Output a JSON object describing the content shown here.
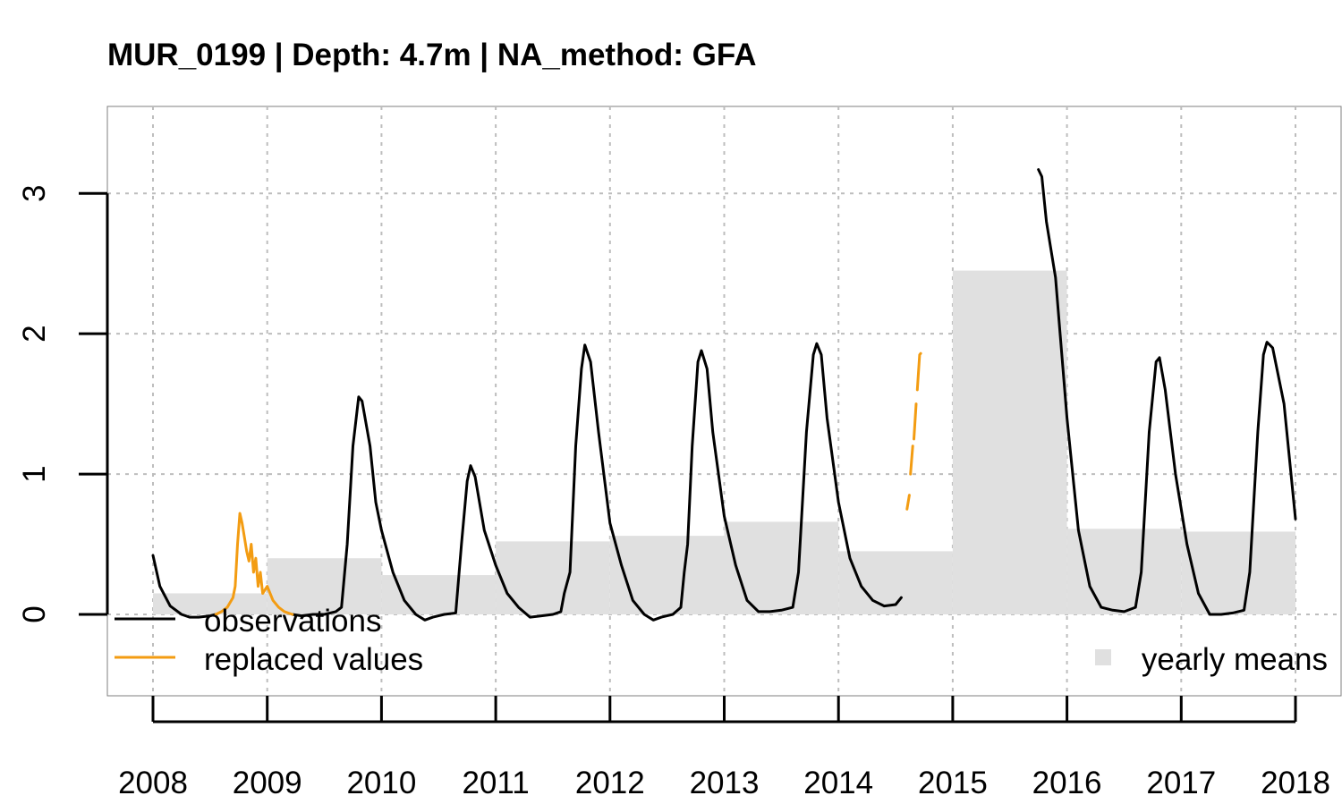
{
  "chart_data": {
    "type": "line",
    "title": "MUR_0199 | Depth: 4.7m | NA_method: GFA",
    "xlabel": "",
    "ylabel": "",
    "xlim": [
      2008,
      2018
    ],
    "ylim": [
      -0.58,
      3.62
    ],
    "grid": true,
    "x_ticks": [
      "2008",
      "2009",
      "2010",
      "2011",
      "2012",
      "2013",
      "2014",
      "2015",
      "2016",
      "2017",
      "2018"
    ],
    "y_ticks": [
      "0",
      "1",
      "2",
      "3"
    ],
    "legend_left_position": "bottom-left",
    "legend_right_position": "bottom-right",
    "legend": {
      "observations": "observations",
      "replaced": "replaced values",
      "yearly_means": "yearly means"
    },
    "colors": {
      "observations": "#000000",
      "replaced": "#F39C12",
      "yearly_means": "#E0E0E0",
      "grid": "#BDBDBD"
    },
    "yearly_means": [
      {
        "year": "2008",
        "value": 0.15
      },
      {
        "year": "2009",
        "value": 0.4
      },
      {
        "year": "2010",
        "value": 0.28
      },
      {
        "year": "2011",
        "value": 0.52
      },
      {
        "year": "2012",
        "value": 0.56
      },
      {
        "year": "2013",
        "value": 0.66
      },
      {
        "year": "2014",
        "value": 0.45
      },
      {
        "year": "2015",
        "value": 2.45
      },
      {
        "year": "2016",
        "value": 0.61
      },
      {
        "year": "2017",
        "value": 0.59
      }
    ],
    "series": [
      {
        "name": "observations",
        "segments": [
          [
            [
              2008.0,
              0.42
            ],
            [
              2008.06,
              0.2
            ],
            [
              2008.15,
              0.06
            ],
            [
              2008.25,
              0.0
            ],
            [
              2008.32,
              -0.02
            ],
            [
              2008.4,
              -0.02
            ],
            [
              2008.5,
              -0.01
            ],
            [
              2008.55,
              0.0
            ]
          ],
          [
            [
              2009.22,
              0.0
            ],
            [
              2009.3,
              -0.01
            ],
            [
              2009.4,
              0.0
            ],
            [
              2009.5,
              0.0
            ],
            [
              2009.6,
              0.02
            ],
            [
              2009.65,
              0.05
            ],
            [
              2009.7,
              0.5
            ],
            [
              2009.75,
              1.2
            ],
            [
              2009.8,
              1.55
            ],
            [
              2009.83,
              1.52
            ],
            [
              2009.9,
              1.2
            ],
            [
              2009.95,
              0.8
            ],
            [
              2010.0,
              0.6
            ],
            [
              2010.1,
              0.3
            ],
            [
              2010.2,
              0.1
            ],
            [
              2010.3,
              0.0
            ],
            [
              2010.38,
              -0.04
            ],
            [
              2010.45,
              -0.02
            ],
            [
              2010.55,
              0.0
            ],
            [
              2010.65,
              0.01
            ],
            [
              2010.7,
              0.5
            ],
            [
              2010.75,
              0.95
            ],
            [
              2010.78,
              1.06
            ],
            [
              2010.82,
              0.98
            ],
            [
              2010.9,
              0.6
            ],
            [
              2011.0,
              0.35
            ],
            [
              2011.1,
              0.15
            ],
            [
              2011.2,
              0.05
            ],
            [
              2011.3,
              -0.02
            ],
            [
              2011.4,
              -0.01
            ],
            [
              2011.5,
              0.0
            ],
            [
              2011.57,
              0.02
            ],
            [
              2011.6,
              0.15
            ],
            [
              2011.65,
              0.3
            ],
            [
              2011.7,
              1.2
            ],
            [
              2011.75,
              1.75
            ],
            [
              2011.78,
              1.92
            ],
            [
              2011.83,
              1.8
            ],
            [
              2011.9,
              1.3
            ],
            [
              2012.0,
              0.65
            ],
            [
              2012.1,
              0.35
            ],
            [
              2012.2,
              0.1
            ],
            [
              2012.3,
              0.0
            ],
            [
              2012.38,
              -0.04
            ],
            [
              2012.45,
              -0.02
            ],
            [
              2012.55,
              0.0
            ],
            [
              2012.62,
              0.05
            ],
            [
              2012.65,
              0.3
            ],
            [
              2012.68,
              0.5
            ],
            [
              2012.72,
              1.2
            ],
            [
              2012.77,
              1.8
            ],
            [
              2012.8,
              1.88
            ],
            [
              2012.85,
              1.75
            ],
            [
              2012.9,
              1.3
            ],
            [
              2013.0,
              0.7
            ],
            [
              2013.1,
              0.35
            ],
            [
              2013.2,
              0.1
            ],
            [
              2013.3,
              0.02
            ],
            [
              2013.4,
              0.02
            ],
            [
              2013.5,
              0.03
            ],
            [
              2013.6,
              0.05
            ],
            [
              2013.65,
              0.3
            ],
            [
              2013.72,
              1.3
            ],
            [
              2013.78,
              1.85
            ],
            [
              2013.81,
              1.93
            ],
            [
              2013.85,
              1.85
            ],
            [
              2013.9,
              1.4
            ],
            [
              2014.0,
              0.8
            ],
            [
              2014.1,
              0.4
            ],
            [
              2014.2,
              0.2
            ],
            [
              2014.3,
              0.1
            ],
            [
              2014.4,
              0.06
            ],
            [
              2014.5,
              0.07
            ],
            [
              2014.55,
              0.12
            ]
          ],
          [
            [
              2015.75,
              3.17
            ],
            [
              2015.78,
              3.12
            ],
            [
              2015.82,
              2.8
            ],
            [
              2015.9,
              2.4
            ],
            [
              2016.0,
              1.4
            ],
            [
              2016.1,
              0.6
            ],
            [
              2016.2,
              0.2
            ],
            [
              2016.3,
              0.05
            ],
            [
              2016.4,
              0.03
            ],
            [
              2016.5,
              0.02
            ],
            [
              2016.6,
              0.05
            ],
            [
              2016.65,
              0.3
            ],
            [
              2016.72,
              1.3
            ],
            [
              2016.78,
              1.8
            ],
            [
              2016.81,
              1.83
            ],
            [
              2016.86,
              1.6
            ],
            [
              2016.95,
              1.0
            ],
            [
              2017.05,
              0.5
            ],
            [
              2017.15,
              0.15
            ],
            [
              2017.25,
              0.0
            ],
            [
              2017.35,
              0.0
            ],
            [
              2017.45,
              0.01
            ],
            [
              2017.55,
              0.03
            ],
            [
              2017.6,
              0.3
            ],
            [
              2017.67,
              1.3
            ],
            [
              2017.72,
              1.85
            ],
            [
              2017.75,
              1.94
            ],
            [
              2017.8,
              1.9
            ],
            [
              2017.9,
              1.5
            ],
            [
              2018.0,
              0.68
            ]
          ]
        ]
      },
      {
        "name": "replaced values",
        "segments": [
          [
            [
              2008.55,
              0.0
            ],
            [
              2008.6,
              0.02
            ],
            [
              2008.65,
              0.05
            ],
            [
              2008.7,
              0.12
            ],
            [
              2008.72,
              0.2
            ],
            [
              2008.74,
              0.5
            ],
            [
              2008.76,
              0.72
            ],
            [
              2008.78,
              0.65
            ],
            [
              2008.8,
              0.55
            ],
            [
              2008.82,
              0.45
            ],
            [
              2008.84,
              0.38
            ],
            [
              2008.86,
              0.5
            ],
            [
              2008.88,
              0.3
            ],
            [
              2008.9,
              0.4
            ],
            [
              2008.92,
              0.2
            ],
            [
              2008.94,
              0.3
            ],
            [
              2008.96,
              0.15
            ],
            [
              2009.0,
              0.2
            ],
            [
              2009.05,
              0.1
            ],
            [
              2009.1,
              0.05
            ],
            [
              2009.15,
              0.02
            ],
            [
              2009.22,
              0.0
            ]
          ],
          [
            [
              2014.6,
              0.75
            ],
            [
              2014.62,
              0.85
            ]
          ],
          [
            [
              2014.63,
              1.0
            ],
            [
              2014.65,
              1.2
            ]
          ],
          [
            [
              2014.66,
              1.25
            ],
            [
              2014.68,
              1.5
            ]
          ],
          [
            [
              2014.69,
              1.6
            ],
            [
              2014.71,
              1.85
            ],
            [
              2014.72,
              1.86
            ]
          ]
        ]
      }
    ]
  }
}
